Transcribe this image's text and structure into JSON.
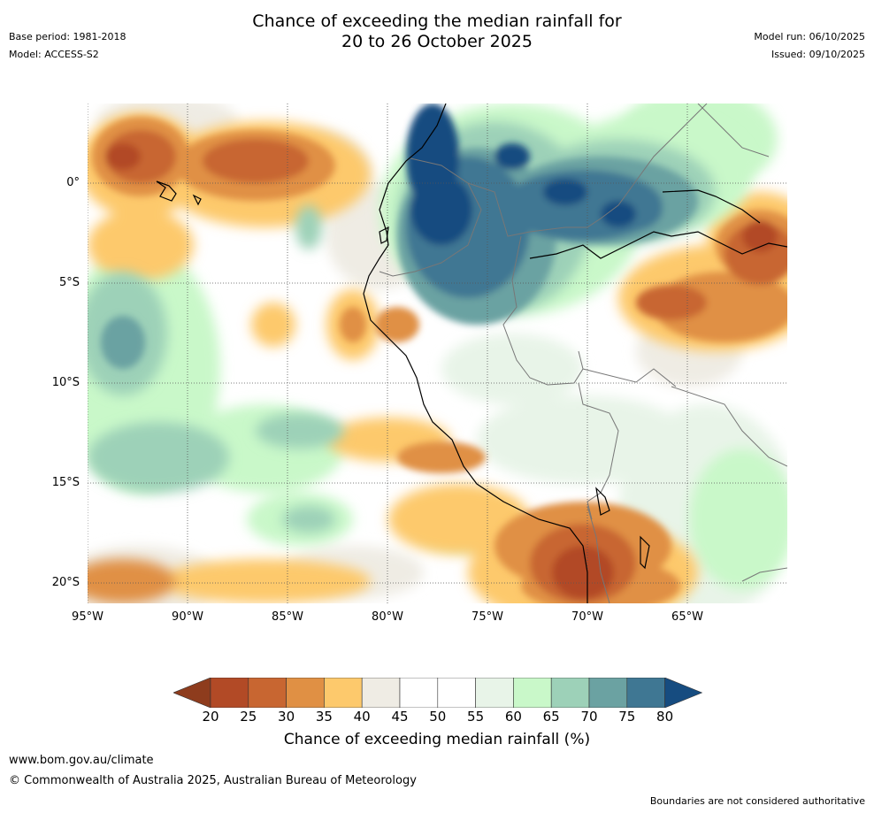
{
  "title_line1": "Chance of exceeding the median rainfall for",
  "title_line2": "20 to 26 October 2025",
  "meta": {
    "base_period": "Base period: 1981-2018",
    "model": "Model: ACCESS-S2",
    "model_run": "Model run: 06/10/2025",
    "issued": "Issued: 09/10/2025"
  },
  "map": {
    "lon_labels": [
      "95°W",
      "90°W",
      "85°W",
      "80°W",
      "75°W",
      "70°W",
      "65°W"
    ],
    "lat_labels": [
      "0°",
      "5°S",
      "10°S",
      "15°S",
      "20°S"
    ]
  },
  "colorbar": {
    "ticks": [
      "20",
      "25",
      "30",
      "35",
      "40",
      "45",
      "50",
      "55",
      "60",
      "65",
      "70",
      "75",
      "80"
    ],
    "colors": [
      "#8e3c1d",
      "#b24a26",
      "#c86631",
      "#e09044",
      "#fdc96c",
      "#efece4",
      "#ffffff",
      "#ffffff",
      "#e8f4e8",
      "#c9f8c9",
      "#9dd1b8",
      "#6ba2a2",
      "#3f7793",
      "#164c80"
    ],
    "label": "Chance of exceeding median rainfall (%)"
  },
  "footer": {
    "site": "www.bom.gov.au/climate",
    "copyright": "© Commonwealth of Australia 2025, Australian Bureau of Meteorology",
    "disclaimer": "Boundaries are not considered authoritative"
  }
}
